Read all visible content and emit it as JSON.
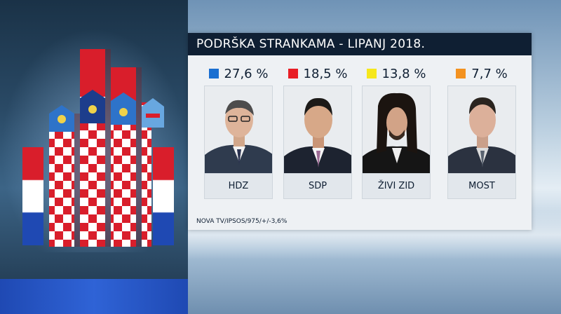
{
  "header": {
    "title": "PODRŠKA STRANKAMA - LIPANJ 2018."
  },
  "parties": [
    {
      "name": "HDZ",
      "percent": "27,6 %",
      "color": "#1a6fd1"
    },
    {
      "name": "SDP",
      "percent": "18,5 %",
      "color": "#e81e25"
    },
    {
      "name": "ŽIVI ZID",
      "percent": "13,8 %",
      "color": "#f6e71c"
    },
    {
      "name": "MOST",
      "percent": "7,7 %",
      "color": "#f39220"
    }
  ],
  "source": "NOVA TV/IPSOS/975/+/-3,6%",
  "icons": {
    "left_graphic": "croatian-flag-coat-of-arms-icon"
  },
  "colors": {
    "header_bg": "#0f1f33",
    "card_bg": "#eef1f4"
  }
}
